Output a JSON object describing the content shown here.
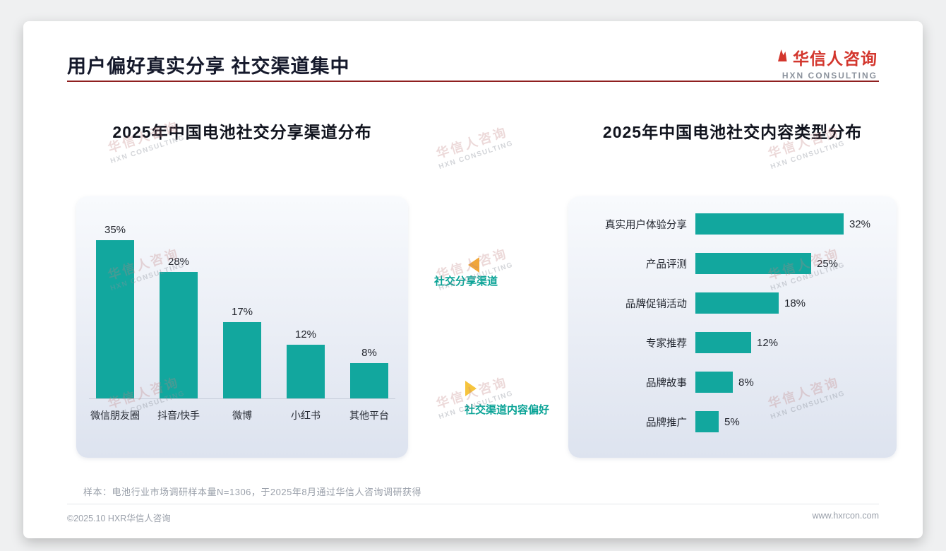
{
  "page": {
    "title": "用户偏好真实分享 社交渠道集中",
    "footnote": "样本：电池行业市场调研样本量N=1306，于2025年8月通过华信人咨询调研获得",
    "footer_left": "©2025.10 HXR华信人咨询",
    "footer_right": "www.hxrcon.com"
  },
  "logo": {
    "cn": "华信人咨询",
    "en": "HXN CONSULTING"
  },
  "watermark": {
    "line1": "华信人咨询",
    "line2": "HXN CONSULTING"
  },
  "middle_labels": {
    "left": "社交分享渠道",
    "right": "社交渠道内容偏好"
  },
  "colors": {
    "bar": "#12a79e",
    "accent_red": "#8f1f1f",
    "label_teal": "#0aa396",
    "arrow_orange": "#f0a63a",
    "arrow_yellow": "#f6c43d"
  },
  "chart_data": [
    {
      "type": "bar",
      "orientation": "vertical",
      "title": "2025年中国电池社交分享渠道分布",
      "categories": [
        "微信朋友圈",
        "抖音/快手",
        "微博",
        "小红书",
        "其他平台"
      ],
      "values": [
        35,
        28,
        17,
        12,
        8
      ],
      "unit": "%",
      "ylim": [
        0,
        38
      ],
      "grid": false,
      "legend": "none"
    },
    {
      "type": "bar",
      "orientation": "horizontal",
      "title": "2025年中国电池社交内容类型分布",
      "categories": [
        "真实用户体验分享",
        "产品评测",
        "品牌促销活动",
        "专家推荐",
        "品牌故事",
        "品牌推广"
      ],
      "values": [
        32,
        25,
        18,
        12,
        8,
        5
      ],
      "unit": "%",
      "xlim": [
        0,
        35
      ],
      "grid": false,
      "legend": "none"
    }
  ]
}
